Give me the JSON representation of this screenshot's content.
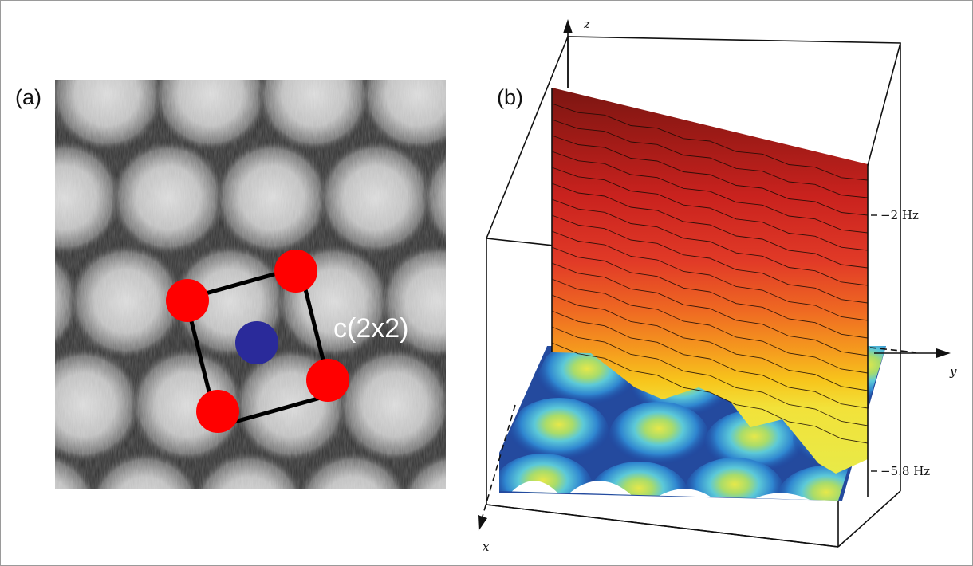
{
  "panel_a": {
    "label": "(a)",
    "cell_label": "c(2x2)",
    "colors": {
      "corner_atom": "#ff0000",
      "center_atom": "#2a2a9a",
      "cell_outline": "#000000"
    }
  },
  "panel_b": {
    "label": "(b)",
    "axes": {
      "x": "x",
      "y": "y",
      "z": "z"
    },
    "scale_top": "−2 Hz",
    "scale_bottom": "−5.8 Hz",
    "colormap": [
      "#1b3f9c",
      "#2f7fd0",
      "#5cc9d8",
      "#e6e84a",
      "#f7c51c",
      "#f08a1d",
      "#e2412a",
      "#bd1f1d",
      "#7b1612"
    ]
  }
}
